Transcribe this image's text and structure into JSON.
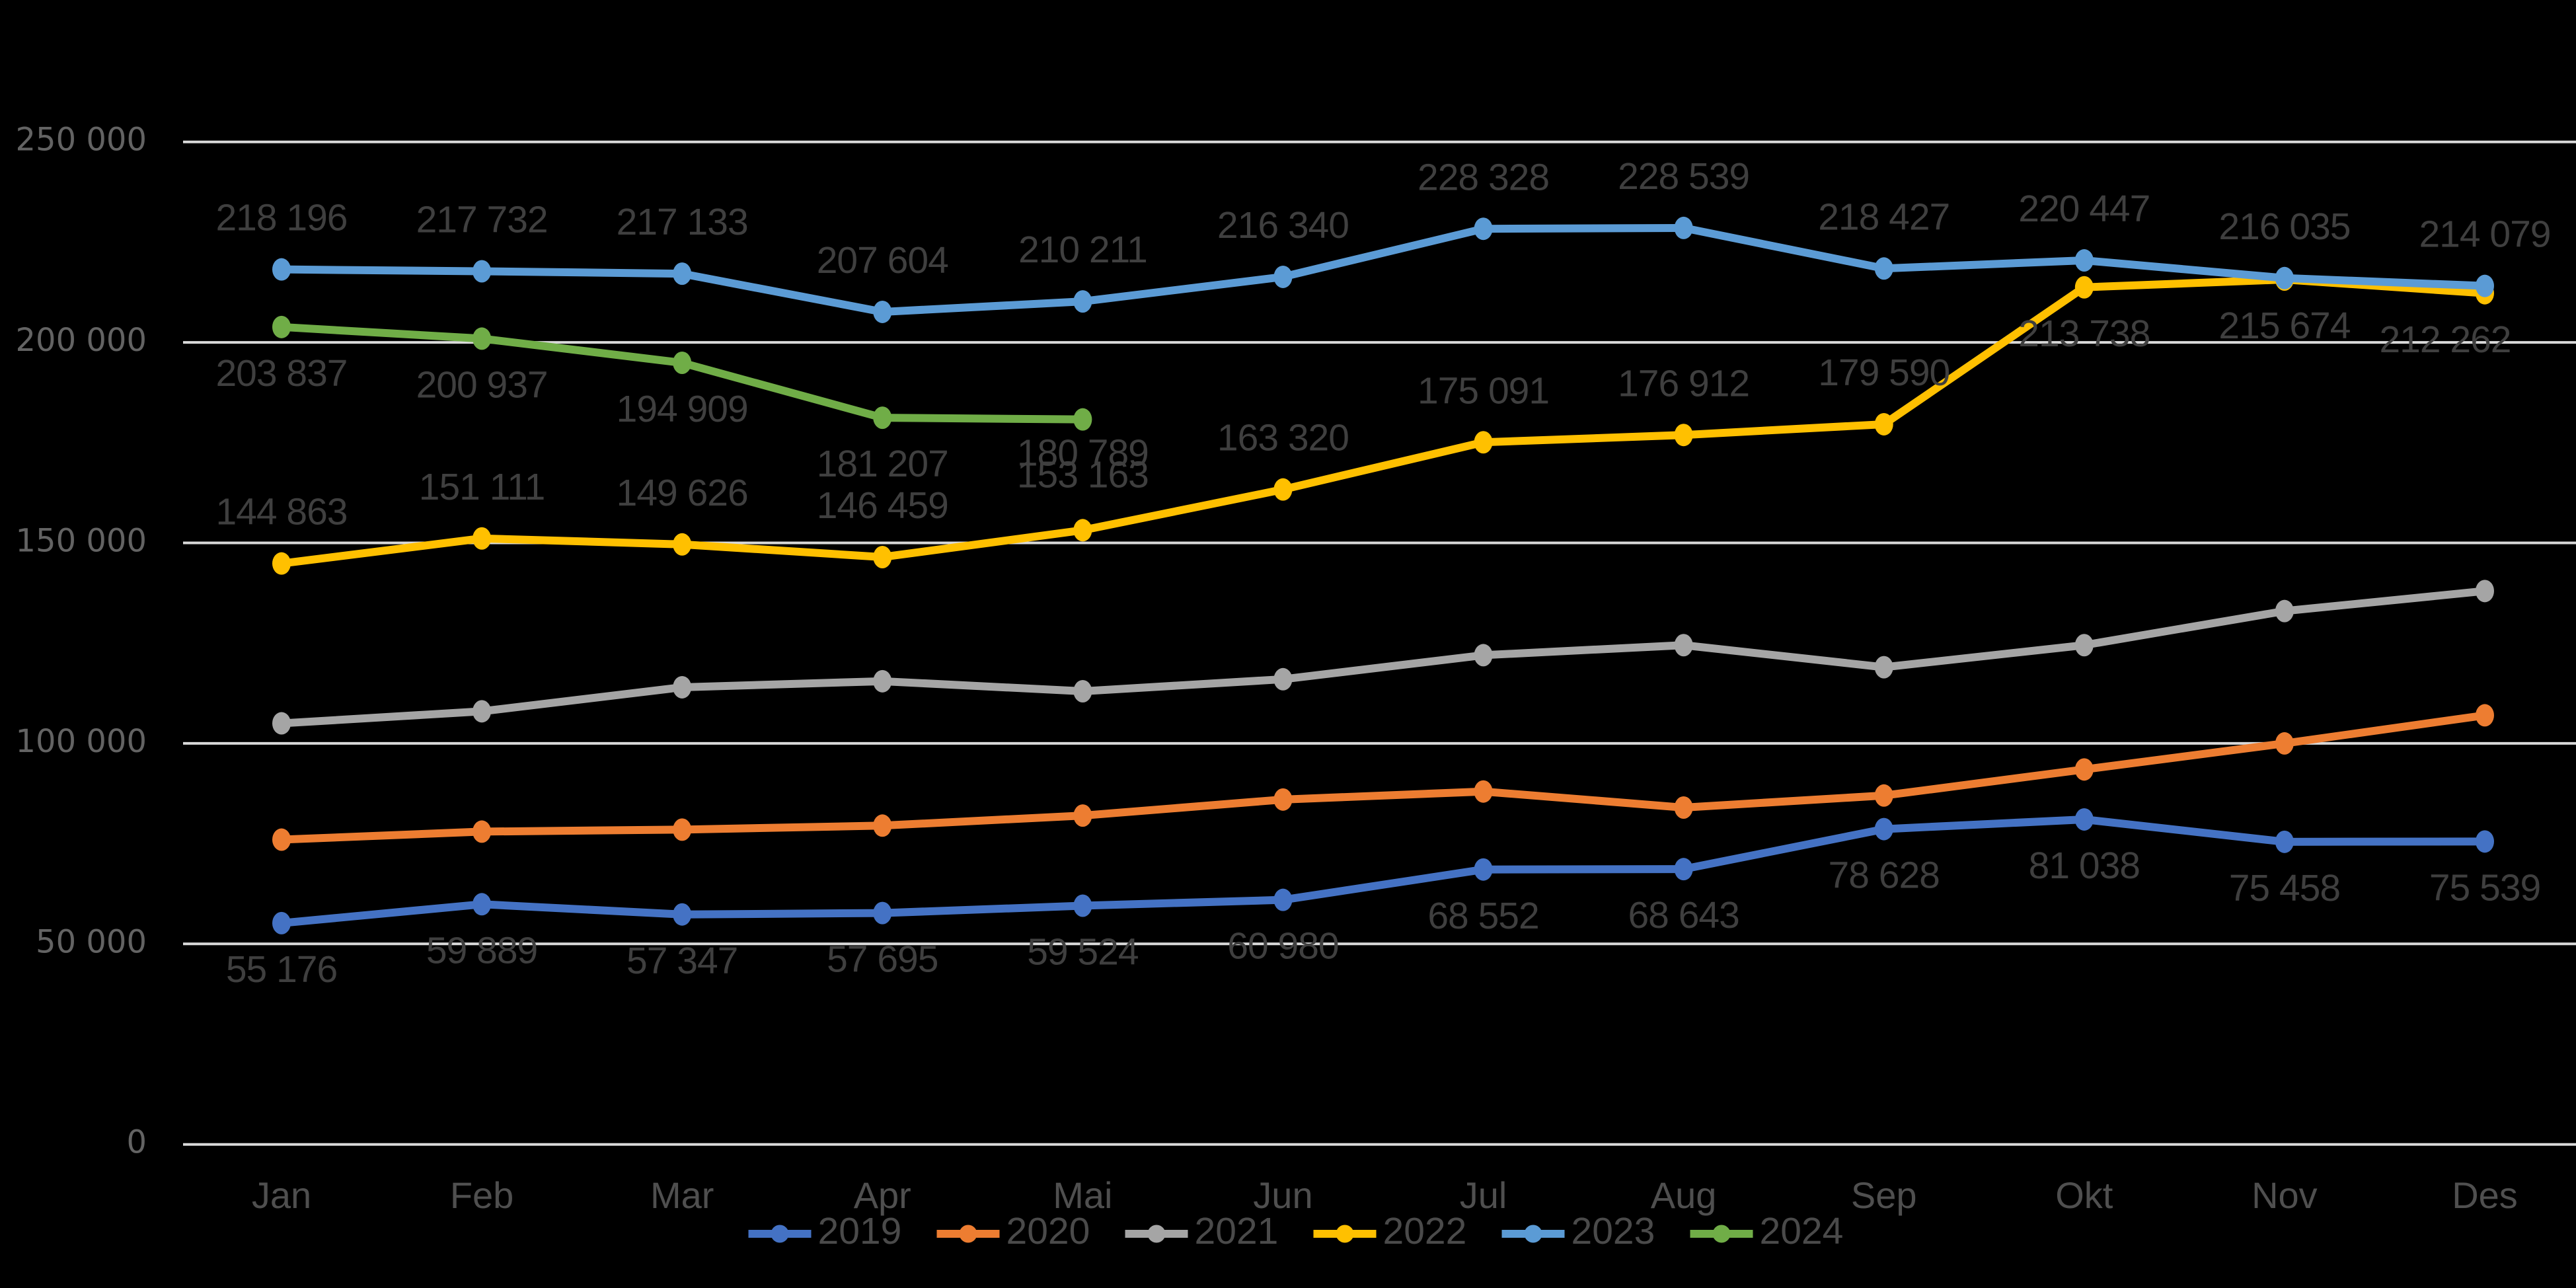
{
  "chart_data": {
    "type": "line",
    "title": "",
    "xlabel": "",
    "ylabel": "",
    "categories": [
      "Jan",
      "Feb",
      "Mar",
      "Apr",
      "Mai",
      "Jun",
      "Jul",
      "Aug",
      "Sep",
      "Okt",
      "Nov",
      "Des"
    ],
    "y_axis": {
      "min": 0,
      "max": 250000,
      "step": 50000,
      "tick_labels": [
        "0",
        "50 000",
        "100 000",
        "150 000",
        "200 000",
        "250 000"
      ]
    },
    "grid": true,
    "legend_position": "bottom",
    "legend_entries": [
      "2019",
      "2020",
      "2021",
      "2022",
      "2023",
      "2024"
    ],
    "series": [
      {
        "name": "2019",
        "color": "#4472C4",
        "values": [
          55176,
          59889,
          57347,
          57695,
          59524,
          60980,
          68552,
          68643,
          78628,
          81038,
          75458,
          75539
        ],
        "data_labels": [
          "55 176",
          "59 889",
          "57 347",
          "57 695",
          "59 524",
          "60 980",
          "68 552",
          "68 643",
          "78 628",
          "81 038",
          "75 458",
          "75 539"
        ],
        "label_dy": [
          74,
          74,
          74,
          74,
          74,
          74,
          74,
          74,
          74,
          74,
          74,
          74
        ],
        "label_dx": [
          0,
          0,
          0,
          0,
          0,
          0,
          0,
          0,
          0,
          0,
          0,
          0
        ],
        "approximate_values": false
      },
      {
        "name": "2020",
        "color": "#ED7D31",
        "values": [
          76000,
          78000,
          78500,
          79500,
          82000,
          86000,
          88000,
          84000,
          87000,
          93500,
          100000,
          107000
        ],
        "data_labels": null,
        "label_dy": null,
        "label_dx": null,
        "approximate_values": true
      },
      {
        "name": "2021",
        "color": "#A5A5A5",
        "values": [
          105000,
          108000,
          114000,
          115500,
          113000,
          116000,
          122000,
          124500,
          119000,
          124500,
          133000,
          138000
        ],
        "data_labels": null,
        "label_dy": null,
        "label_dx": null,
        "approximate_values": true
      },
      {
        "name": "2022",
        "color": "#FFC000",
        "values": [
          144863,
          151111,
          149626,
          146459,
          153163,
          163320,
          175091,
          176912,
          179590,
          213738,
          215674,
          212262
        ],
        "data_labels": [
          "144 863",
          "151 111",
          "149 626",
          "146 459",
          "153 163",
          "163 320",
          "175 091",
          "176 912",
          "179 590",
          "213 738",
          "215 674",
          "212 262"
        ],
        "label_dy": [
          -74,
          -74,
          -74,
          -74,
          -80,
          -74,
          -74,
          -74,
          -74,
          74,
          74,
          74
        ],
        "label_dx": [
          0,
          0,
          0,
          0,
          0,
          0,
          0,
          0,
          0,
          0,
          0,
          -60
        ],
        "approximate_values": false
      },
      {
        "name": "2023",
        "color": "#5B9BD5",
        "values": [
          218196,
          217732,
          217133,
          207604,
          210211,
          216340,
          228328,
          228539,
          218427,
          220447,
          216035,
          214079
        ],
        "data_labels": [
          "218 196",
          "217 732",
          "217 133",
          "207 604",
          "210 211",
          "216 340",
          "228 328",
          "228 539",
          "218 427",
          "220 447",
          "216 035",
          "214 079"
        ],
        "label_dy": [
          -74,
          -74,
          -74,
          -74,
          -74,
          -74,
          -74,
          -74,
          -74,
          -74,
          -74,
          -74
        ],
        "label_dx": [
          0,
          0,
          0,
          0,
          0,
          0,
          0,
          0,
          0,
          0,
          0,
          0
        ],
        "approximate_values": false
      },
      {
        "name": "2024",
        "color": "#70AD47",
        "values": [
          203837,
          200937,
          194909,
          181207,
          180789
        ],
        "data_labels": [
          "203 837",
          "200 937",
          "194 909",
          "181 207",
          "180 789"
        ],
        "label_dy": [
          74,
          74,
          74,
          74,
          55
        ],
        "label_dx": [
          0,
          0,
          0,
          0,
          0
        ],
        "approximate_values": false
      }
    ]
  },
  "style": {
    "background_color": "#000000",
    "gridline_color": "#D9D9D9",
    "y_axis_label_color": "#636363",
    "x_axis_label_color": "#4f4f4f",
    "data_label_color": "#3f3f3f",
    "legend_text_color": "#4a4a4a"
  }
}
